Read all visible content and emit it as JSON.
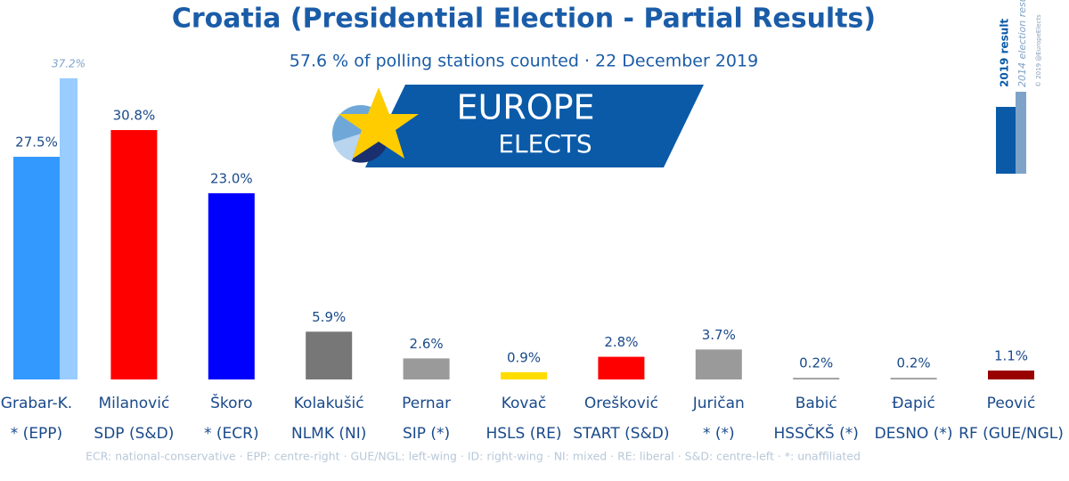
{
  "chart_data": {
    "type": "bar",
    "title": "Croatia (Presidential Election - Partial Results)",
    "subtitle": "57.6 % of polling stations counted · 22 December 2019",
    "logo": [
      "EUROPE",
      "ELECTS"
    ],
    "copyright": "© 2019 @EuropeElects",
    "categories": [
      "Grabar-K.",
      "Milanović",
      "Škoro",
      "Kolakušić",
      "Pernar",
      "Kovač",
      "Orešković",
      "Juričan",
      "Babić",
      "Đapić",
      "Peović"
    ],
    "parties": [
      "* (EPP)",
      "SDP (S&D)",
      "* (ECR)",
      "NLMK (NI)",
      "SIP (*)",
      "HSLS (RE)",
      "START (S&D)",
      "* (*)",
      "HSSČKŠ (*)",
      "DESNO (*)",
      "RF (GUE/NGL)"
    ],
    "series": [
      {
        "name": "2019 result",
        "legend_color": "#0a5aa8",
        "colors": [
          "#3399ff",
          "#ff0000",
          "#0000ff",
          "#777777",
          "#9a9a9a",
          "#ffdd00",
          "#ff0000",
          "#9a9a9a",
          "#9a9a9a",
          "#9a9a9a",
          "#990000"
        ],
        "values": [
          27.5,
          30.8,
          23.0,
          5.9,
          2.6,
          0.9,
          2.8,
          3.7,
          0.2,
          0.2,
          1.1
        ],
        "value_labels": [
          "27.5%",
          "30.8%",
          "23.0%",
          "5.9%",
          "2.6%",
          "0.9%",
          "2.8%",
          "3.7%",
          "0.2%",
          "0.2%",
          "1.1%"
        ]
      },
      {
        "name": "2014 election result",
        "color": "#99ccff",
        "legend_color": "#7fa3c8",
        "values": [
          37.2,
          null,
          null,
          null,
          null,
          null,
          null,
          null,
          null,
          null,
          null
        ],
        "value_labels": [
          "37.2%",
          null,
          null,
          null,
          null,
          null,
          null,
          null,
          null,
          null,
          null
        ]
      }
    ],
    "footnote": "ECR: national-conservative · EPP: centre-right · GUE/NGL: left-wing · ID: right-wing · NI: mixed · RE: liberal · S&D: centre-left · *: unaffiliated"
  }
}
